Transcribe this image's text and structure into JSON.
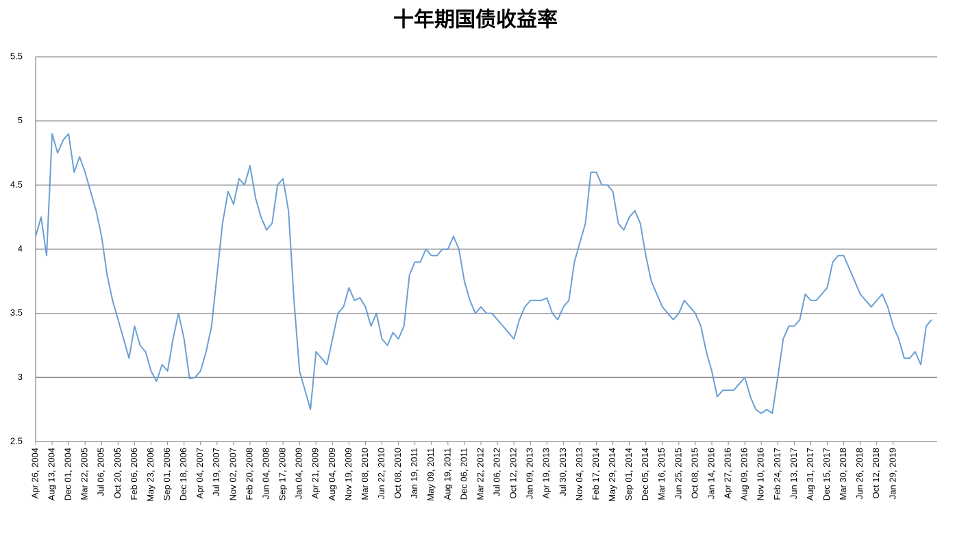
{
  "chart_data": {
    "type": "line",
    "title": "十年期国债收益率",
    "categories": [
      "Apr 26, 2004",
      null,
      null,
      "Aug 13, 2004",
      null,
      null,
      "Dec 01, 2004",
      null,
      null,
      "Mar 22, 2005",
      null,
      null,
      "Jul 06, 2005",
      null,
      null,
      "Oct 20, 2005",
      null,
      null,
      "Feb 06, 2006",
      null,
      null,
      "May 23, 2006",
      null,
      null,
      "Sep 01, 2006",
      null,
      null,
      "Dec 18, 2006",
      null,
      null,
      "Apr 04, 2007",
      null,
      null,
      "Jul 19, 2007",
      null,
      null,
      "Nov 02, 2007",
      null,
      null,
      "Feb 20, 2008",
      null,
      null,
      "Jun 04, 2008",
      null,
      null,
      "Sep 17, 2008",
      null,
      null,
      "Jan 04, 2009",
      null,
      null,
      "Apr 21, 2009",
      null,
      null,
      "Aug 04, 2009",
      null,
      null,
      "Nov 19, 2009",
      null,
      null,
      "Mar 08, 2010",
      null,
      null,
      "Jun 22, 2010",
      null,
      null,
      "Oct 08, 2010",
      null,
      null,
      "Jan 19, 2011",
      null,
      null,
      "May 09, 2011",
      null,
      null,
      "Aug 19, 2011",
      null,
      null,
      "Dec 06, 2011",
      null,
      null,
      "Mar 22, 2012",
      null,
      null,
      "Jul 06, 2012",
      null,
      null,
      "Oct 12, 2012",
      null,
      null,
      "Jan 09, 2013",
      null,
      null,
      "Apr 19, 2013",
      null,
      null,
      "Jul 30, 2013",
      null,
      null,
      "Nov 04, 2013",
      null,
      null,
      "Feb 17, 2014",
      null,
      null,
      "May 29, 2014",
      null,
      null,
      "Sep 01, 2014",
      null,
      null,
      "Dec 05, 2014",
      null,
      null,
      "Mar 16, 2015",
      null,
      null,
      "Jun 25, 2015",
      null,
      null,
      "Oct 08, 2015",
      null,
      null,
      "Jan 14, 2016",
      null,
      null,
      "Apr 27, 2016",
      null,
      null,
      "Aug 09, 2016",
      null,
      null,
      "Nov 10, 2016",
      null,
      null,
      "Feb 24, 2017",
      null,
      null,
      "Jun 13, 2017",
      null,
      null,
      "Aug 31, 2017",
      null,
      null,
      "Dec 15, 2017",
      null,
      null,
      "Mar 30, 2018",
      null,
      null,
      "Jun 26, 2018",
      null,
      null,
      "Oct 12, 2018",
      null,
      null,
      "Jan 29, 2019",
      null,
      null,
      null,
      null,
      null,
      null,
      null
    ],
    "values": [
      4.1,
      4.25,
      3.95,
      4.9,
      4.75,
      4.85,
      4.9,
      4.6,
      4.72,
      4.6,
      4.45,
      4.3,
      4.1,
      3.8,
      3.6,
      3.45,
      3.3,
      3.15,
      3.4,
      3.25,
      3.2,
      3.05,
      2.97,
      3.1,
      3.05,
      3.3,
      3.5,
      3.3,
      2.99,
      3.0,
      3.05,
      3.2,
      3.4,
      3.8,
      4.2,
      4.45,
      4.35,
      4.55,
      4.5,
      4.65,
      4.4,
      4.25,
      4.15,
      4.2,
      4.5,
      4.55,
      4.3,
      3.6,
      3.05,
      2.9,
      2.75,
      3.2,
      3.15,
      3.1,
      3.3,
      3.5,
      3.55,
      3.7,
      3.6,
      3.62,
      3.55,
      3.4,
      3.5,
      3.3,
      3.25,
      3.35,
      3.3,
      3.4,
      3.8,
      3.9,
      3.9,
      4.0,
      3.95,
      3.95,
      4.0,
      4.0,
      4.1,
      4.0,
      3.75,
      3.6,
      3.5,
      3.55,
      3.5,
      3.5,
      3.45,
      3.4,
      3.35,
      3.3,
      3.45,
      3.55,
      3.6,
      3.6,
      3.6,
      3.62,
      3.5,
      3.45,
      3.55,
      3.6,
      3.9,
      4.05,
      4.2,
      4.6,
      4.6,
      4.5,
      4.5,
      4.45,
      4.2,
      4.15,
      4.25,
      4.3,
      4.2,
      3.95,
      3.75,
      3.65,
      3.55,
      3.5,
      3.45,
      3.5,
      3.6,
      3.55,
      3.5,
      3.4,
      3.2,
      3.05,
      2.85,
      2.9,
      2.9,
      2.9,
      2.95,
      3.0,
      2.85,
      2.75,
      2.72,
      2.75,
      2.72,
      3.0,
      3.3,
      3.4,
      3.4,
      3.45,
      3.65,
      3.6,
      3.6,
      3.65,
      3.7,
      3.9,
      3.95,
      3.95,
      3.85,
      3.75,
      3.65,
      3.6,
      3.55,
      3.6,
      3.65,
      3.55,
      3.4,
      3.3,
      3.15,
      3.15,
      3.2,
      3.1,
      3.4,
      3.45
    ],
    "color": "#6a9fd4",
    "ylim": [
      2.5,
      5.5
    ],
    "yticks": [
      2.5,
      3,
      3.5,
      4,
      4.5,
      5,
      5.5
    ],
    "grid": true
  }
}
